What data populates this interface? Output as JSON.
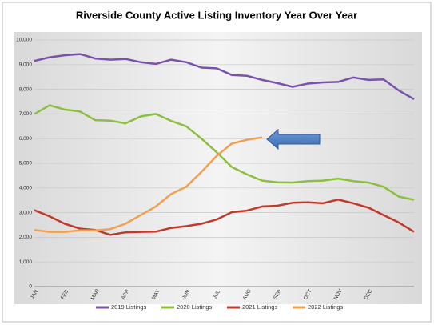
{
  "chart_data": {
    "type": "line",
    "title": "Riverside County Active Listing Inventory Year Over Year",
    "categories": [
      "JAN",
      null,
      "FEB",
      null,
      "MAR",
      null,
      "APR",
      null,
      "MAY",
      null,
      "JUN",
      null,
      "JUL",
      null,
      "AUG",
      null,
      "SEP",
      null,
      "OCT",
      null,
      "NOV",
      null,
      "DEC",
      null,
      null,
      null
    ],
    "series": [
      {
        "name": "2019 Listings",
        "color": "#7b52ab",
        "values": [
          9150,
          9300,
          9380,
          9430,
          9250,
          9200,
          9230,
          9100,
          9030,
          9200,
          9100,
          8880,
          8850,
          8580,
          8550,
          8380,
          8250,
          8100,
          8230,
          8280,
          8300,
          8480,
          8380,
          8400,
          7950,
          7600
        ]
      },
      {
        "name": "2020 Listings",
        "color": "#8cbf3f",
        "values": [
          7000,
          7350,
          7180,
          7100,
          6750,
          6730,
          6620,
          6900,
          7000,
          6720,
          6500,
          6000,
          5450,
          4850,
          4550,
          4300,
          4230,
          4220,
          4280,
          4300,
          4380,
          4280,
          4220,
          4050,
          3650,
          3520
        ]
      },
      {
        "name": "2021 Listings",
        "color": "#c0392b",
        "values": [
          3100,
          2850,
          2550,
          2350,
          2300,
          2100,
          2200,
          2220,
          2230,
          2380,
          2450,
          2550,
          2720,
          3020,
          3080,
          3250,
          3280,
          3400,
          3420,
          3380,
          3530,
          3380,
          3200,
          2900,
          2600,
          2220
        ]
      },
      {
        "name": "2022 Listings",
        "color": "#f0a050",
        "values": [
          2300,
          2220,
          2220,
          2280,
          2280,
          2330,
          2550,
          2900,
          3250,
          3750,
          4050,
          4650,
          5300,
          5800,
          5950,
          6050,
          null,
          null,
          null,
          null,
          null,
          null,
          null,
          null,
          null,
          null
        ]
      }
    ],
    "ylim": [
      0,
      10000
    ],
    "yticks": [
      0,
      {
        "value": 1000,
        "label": "1,000"
      },
      {
        "value": 2000,
        "label": "2,000"
      },
      {
        "value": 3000,
        "label": "3,000"
      },
      {
        "value": 4000,
        "label": "4,000"
      },
      {
        "value": 5000,
        "label": "5,000"
      },
      {
        "value": 6000,
        "label": "6,000"
      },
      {
        "value": 7000,
        "label": "7,000"
      },
      {
        "value": 8000,
        "label": "8,000"
      },
      {
        "value": 9000,
        "label": "9,000"
      },
      {
        "value": 10000,
        "label": "10,000"
      }
    ],
    "grid": true
  }
}
